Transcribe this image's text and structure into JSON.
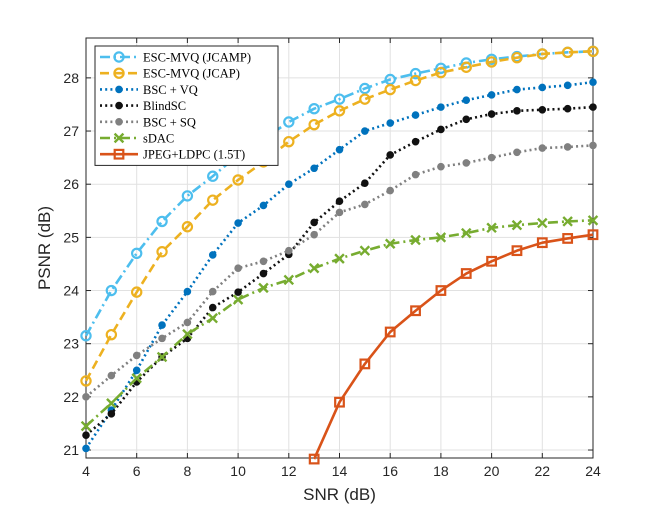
{
  "chart_data": {
    "type": "line",
    "title": "",
    "xlabel": "SNR (dB)",
    "ylabel": "PSNR (dB)",
    "xlim": [
      4,
      24
    ],
    "ylim": [
      20.85,
      28.75
    ],
    "xticks": [
      4,
      6,
      8,
      10,
      12,
      14,
      16,
      18,
      20,
      22,
      24
    ],
    "yticks": [
      21,
      22,
      23,
      24,
      25,
      26,
      27,
      28
    ],
    "grid": true,
    "legend_position": "top-left",
    "x": [
      4,
      5,
      6,
      7,
      8,
      9,
      10,
      11,
      12,
      13,
      14,
      15,
      16,
      17,
      18,
      19,
      20,
      21,
      22,
      23,
      24
    ],
    "series": [
      {
        "name": "ESC-MVQ (JCAMP)",
        "color": "#4DBEEE",
        "line_style": "dashdot",
        "marker": "circle",
        "values": [
          23.15,
          24.0,
          24.7,
          25.3,
          25.78,
          26.15,
          26.55,
          26.85,
          27.17,
          27.42,
          27.6,
          27.8,
          27.97,
          28.08,
          28.18,
          28.28,
          28.35,
          28.4,
          28.45,
          28.48,
          28.5
        ]
      },
      {
        "name": "ESC-MVQ (JCAP)",
        "color": "#EDB120",
        "line_style": "dashed",
        "marker": "circle",
        "values": [
          22.3,
          23.17,
          23.97,
          24.73,
          25.2,
          25.7,
          26.08,
          26.42,
          26.8,
          27.12,
          27.38,
          27.6,
          27.78,
          27.95,
          28.1,
          28.2,
          28.3,
          28.38,
          28.45,
          28.48,
          28.5
        ]
      },
      {
        "name": "BSC + VQ",
        "color": "#0072BD",
        "line_style": "dotted",
        "marker": "dot",
        "values": [
          21.03,
          21.75,
          22.5,
          23.35,
          23.98,
          24.67,
          25.27,
          25.6,
          26.0,
          26.3,
          26.65,
          27.0,
          27.15,
          27.3,
          27.45,
          27.58,
          27.68,
          27.78,
          27.82,
          27.86,
          27.92
        ]
      },
      {
        "name": "BlindSC",
        "color": "#111111",
        "line_style": "dotted",
        "marker": "dot",
        "values": [
          21.28,
          21.68,
          22.28,
          22.75,
          23.1,
          23.68,
          23.97,
          24.32,
          24.68,
          25.28,
          25.68,
          26.02,
          26.55,
          26.8,
          27.03,
          27.22,
          27.32,
          27.38,
          27.4,
          27.42,
          27.45
        ]
      },
      {
        "name": "BSC + SQ",
        "color": "#808080",
        "line_style": "dotted",
        "marker": "dot",
        "values": [
          22.0,
          22.4,
          22.78,
          23.1,
          23.4,
          23.98,
          24.42,
          24.55,
          24.75,
          25.05,
          25.47,
          25.62,
          25.88,
          26.18,
          26.33,
          26.4,
          26.5,
          26.6,
          26.68,
          26.7,
          26.73
        ]
      },
      {
        "name": "sDAC",
        "color": "#77AC30",
        "line_style": "dashdot",
        "marker": "x",
        "values": [
          21.45,
          21.88,
          22.35,
          22.75,
          23.18,
          23.48,
          23.83,
          24.05,
          24.2,
          24.42,
          24.6,
          24.75,
          24.88,
          24.95,
          25.0,
          25.08,
          25.18,
          25.23,
          25.27,
          25.3,
          25.32
        ]
      },
      {
        "name": "JPEG+LDPC (1.5T)",
        "color": "#D95319",
        "line_style": "solid",
        "marker": "square",
        "values": [
          null,
          null,
          null,
          null,
          null,
          null,
          null,
          null,
          null,
          20.83,
          21.9,
          22.62,
          23.22,
          23.62,
          24.0,
          24.32,
          24.55,
          24.75,
          24.9,
          24.98,
          25.05
        ]
      }
    ]
  }
}
